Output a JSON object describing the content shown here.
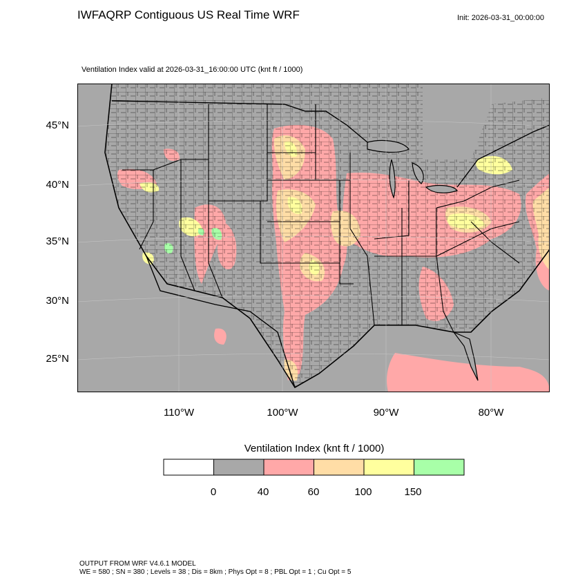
{
  "header": {
    "title": "IWFAQRP Contiguous US Real Time WRF",
    "init": "Init: 2026-03-31_00:00:00",
    "subtitle": "Ventilation Index valid at 2026-03-31_16:00:00 UTC   (knt ft / 1000)"
  },
  "map": {
    "lat_labels": [
      "45°N",
      "40°N",
      "35°N",
      "30°N",
      "25°N"
    ],
    "lon_labels": [
      "110°W",
      "100°W",
      "90°W",
      "80°W"
    ],
    "region": "Contiguous US",
    "colors": {
      "gray": "#a8a8a8",
      "pink": "#ffa8a8",
      "orange": "#ffdda6",
      "yellow": "#ffff9e",
      "green": "#a8ffa8",
      "border": "#000000"
    }
  },
  "legend": {
    "title": "Ventilation Index  (knt ft / 1000)",
    "colors": [
      "#ffffff",
      "#a8a8a8",
      "#ffa8a8",
      "#ffdda6",
      "#ffff9e",
      "#a8ffa8"
    ],
    "labels": [
      "0",
      "40",
      "60",
      "100",
      "150"
    ]
  },
  "footer": {
    "line1": "OUTPUT FROM WRF V4.6.1 MODEL",
    "line2": "WE = 580 ; SN = 380 ; Levels = 38 ; Dis = 8km ; Phys Opt = 8 ; PBL Opt = 1 ; Cu Opt = 5"
  }
}
